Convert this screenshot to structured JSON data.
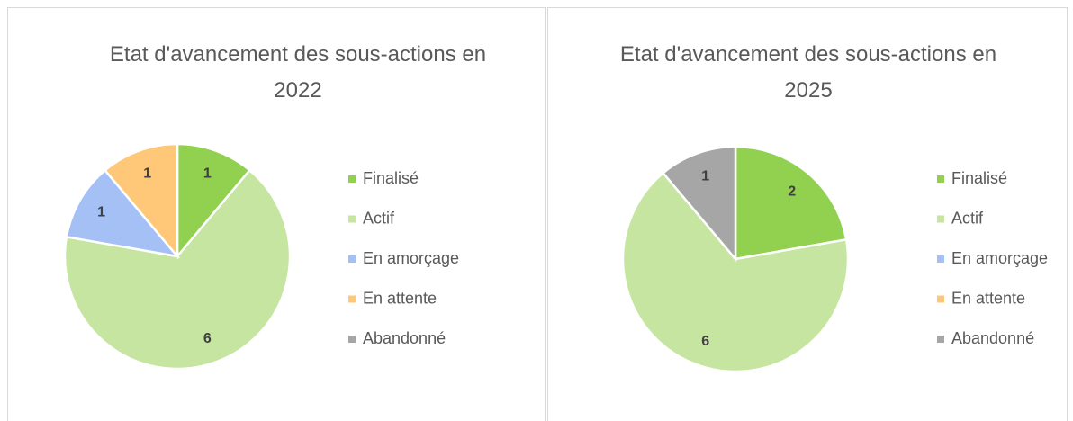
{
  "chart_data": [
    {
      "type": "pie",
      "title": "Etat d'avancement des sous-actions en 2022",
      "categories": [
        "Finalisé",
        "Actif",
        "En amorçage",
        "En attente",
        "Abandonné"
      ],
      "values": [
        1,
        6,
        1,
        1,
        0
      ],
      "colors": [
        "#92d050",
        "#c5e5a0",
        "#a5c0f5",
        "#ffc878",
        "#a6a6a6"
      ],
      "legend": "right"
    },
    {
      "type": "pie",
      "title": "Etat d'avancement des sous-actions en 2025",
      "categories": [
        "Finalisé",
        "Actif",
        "En amorçage",
        "En attente",
        "Abandonné"
      ],
      "values": [
        2,
        6,
        0,
        0,
        1
      ],
      "colors": [
        "#92d050",
        "#c5e5a0",
        "#a5c0f5",
        "#ffc878",
        "#a6a6a6"
      ],
      "legend": "right"
    }
  ]
}
